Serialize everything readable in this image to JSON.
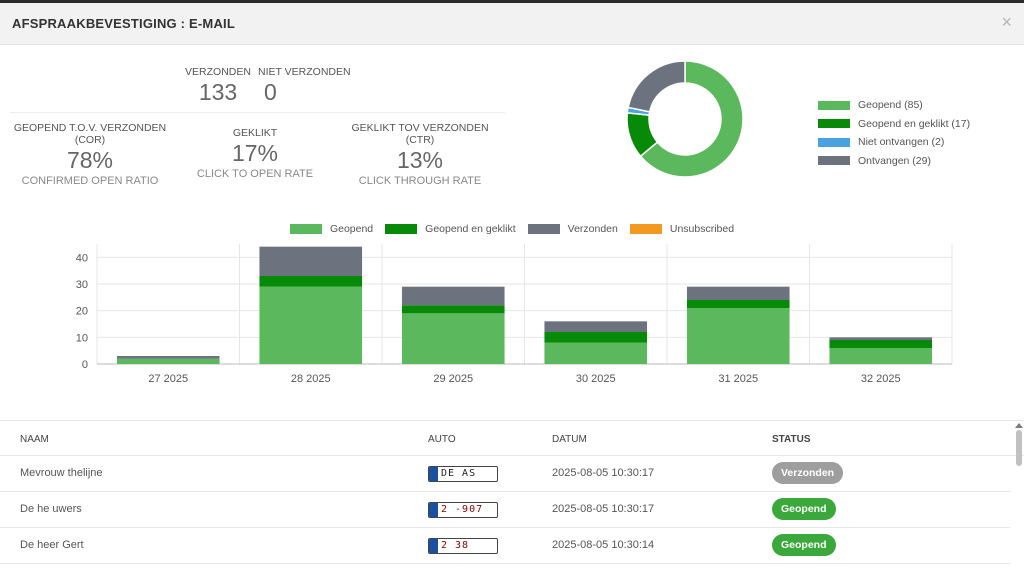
{
  "header": {
    "title": "AFSPRAAKBEVESTIGING : E-MAIL",
    "close": "×"
  },
  "stats": {
    "sent": {
      "label": "VERZONDEN",
      "value": "133"
    },
    "not_sent": {
      "label": "NIET VERZONDEN",
      "value": "0"
    },
    "cor": {
      "label_line1": "GEOPEND T.O.V. VERZONDEN",
      "label_line2": "(COR)",
      "value": "78%",
      "sub": "CONFIRMED OPEN RATIO"
    },
    "clicked": {
      "label": "GEKLIKT",
      "value": "17%",
      "sub": "CLICK TO OPEN RATE"
    },
    "ctr": {
      "label": "GEKLIKT TOV VERZONDEN",
      "label_line2": "(CTR)",
      "value": "13%",
      "sub": "CLICK THROUGH RATE"
    }
  },
  "chart_data": [
    {
      "type": "pie",
      "donut": true,
      "legend_position": "right",
      "slices": [
        {
          "label": "Geopend (85)",
          "value": 85,
          "color": "#5cb85c"
        },
        {
          "label": "Geopend en geklikt (17)",
          "value": 17,
          "color": "#078a07"
        },
        {
          "label": "Niet ontvangen (2)",
          "value": 2,
          "color": "#4aa3df"
        },
        {
          "label": "Ontvangen (29)",
          "value": 29,
          "color": "#6c727e"
        }
      ]
    },
    {
      "type": "bar",
      "stacked": true,
      "legend_position": "top",
      "grid": true,
      "categories": [
        "27 2025",
        "28 2025",
        "29 2025",
        "30 2025",
        "31 2025",
        "32 2025"
      ],
      "ylim": [
        0,
        45
      ],
      "yticks": [
        0,
        10,
        20,
        30,
        40
      ],
      "series": [
        {
          "name": "Geopend",
          "color": "#5cb85c",
          "values": [
            2,
            29,
            19,
            8,
            21,
            6
          ]
        },
        {
          "name": "Geopend en geklikt",
          "color": "#078a07",
          "values": [
            0,
            4,
            3,
            4,
            3,
            3
          ]
        },
        {
          "name": "Verzonden",
          "color": "#6c727e",
          "values": [
            1,
            11,
            7,
            4,
            5,
            1
          ]
        },
        {
          "name": "Unsubscribed",
          "color": "#f39a1e",
          "values": [
            0,
            0,
            0,
            0,
            0,
            0
          ]
        }
      ]
    }
  ],
  "table": {
    "headers": {
      "name": "NAAM",
      "car": "AUTO",
      "date": "DATUM",
      "status": "STATUS"
    },
    "rows": [
      {
        "name": "Mevrouw thelijne",
        "plate": "DE  AS",
        "date": "2025-08-05 10:30:17",
        "status": "Verzonden",
        "status_color": "#9e9e9e"
      },
      {
        "name": "De he uwers",
        "plate": "2 -907",
        "date": "2025-08-05 10:30:17",
        "status": "Geopend",
        "status_color": "#3aa83a"
      },
      {
        "name": "De heer Gert",
        "plate": "2  38",
        "date": "2025-08-05 10:30:14",
        "status": "Geopend",
        "status_color": "#3aa83a"
      }
    ]
  }
}
